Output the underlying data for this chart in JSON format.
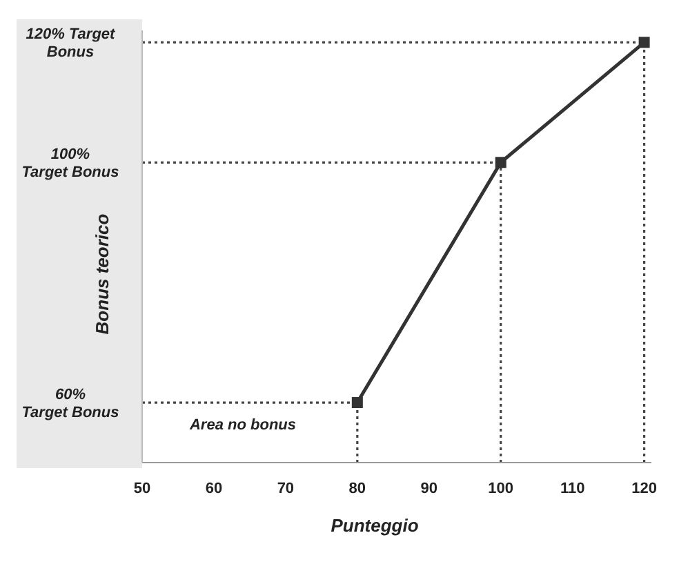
{
  "chart_data": {
    "type": "line",
    "xlabel": "Punteggio",
    "ylabel": "Bonus teorico",
    "annotations": [
      "Area no bonus"
    ],
    "x": [
      80,
      100,
      120
    ],
    "series": [
      {
        "color": "#333333",
        "values": [
          60,
          100,
          120
        ]
      }
    ],
    "xlim": [
      50,
      121
    ],
    "xticks": [
      50,
      60,
      70,
      80,
      90,
      100,
      110,
      120
    ],
    "ylim": [
      50,
      122
    ],
    "yticks": [
      {
        "value": 60,
        "label": "60%\nTarget Bonus"
      },
      {
        "value": 100,
        "label": "100%\nTarget Bonus"
      },
      {
        "value": 120,
        "label": "120% Target\nBonus"
      }
    ],
    "marker": "square",
    "ref_lines": [
      {
        "axis": "y",
        "value": 60,
        "color": "#444444",
        "line_style": "dotted"
      },
      {
        "axis": "y",
        "value": 100,
        "color": "#444444",
        "line_style": "dotted"
      },
      {
        "axis": "y",
        "value": 120,
        "color": "#444444",
        "line_style": "dotted"
      },
      {
        "axis": "x",
        "value": 80,
        "color": "#444444",
        "line_style": "dotted"
      },
      {
        "axis": "x",
        "value": 100,
        "color": "#444444",
        "line_style": "dotted"
      },
      {
        "axis": "x",
        "value": 120,
        "color": "#444444",
        "line_style": "dotted"
      }
    ]
  }
}
